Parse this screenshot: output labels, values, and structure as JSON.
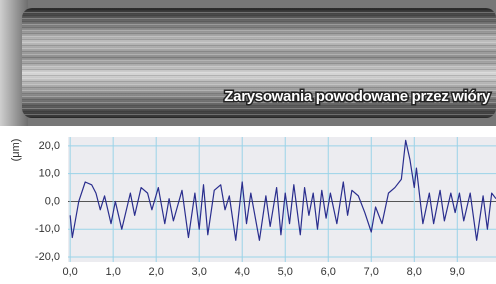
{
  "photo": {
    "caption": "Zarysowania powodowane przez wióry"
  },
  "chart_data": {
    "type": "line",
    "y_label": "(μm)",
    "x": [
      0.0,
      0.05,
      0.2,
      0.35,
      0.5,
      0.6,
      0.7,
      0.8,
      0.95,
      1.05,
      1.2,
      1.4,
      1.5,
      1.65,
      1.8,
      1.9,
      2.05,
      2.2,
      2.3,
      2.4,
      2.6,
      2.75,
      2.9,
      3.0,
      3.1,
      3.2,
      3.35,
      3.5,
      3.6,
      3.7,
      3.85,
      4.0,
      4.1,
      4.2,
      4.4,
      4.55,
      4.65,
      4.8,
      4.9,
      5.0,
      5.1,
      5.2,
      5.35,
      5.45,
      5.55,
      5.65,
      5.75,
      5.85,
      5.95,
      6.05,
      6.2,
      6.35,
      6.45,
      6.55,
      6.7,
      6.85,
      7.0,
      7.1,
      7.25,
      7.4,
      7.55,
      7.7,
      7.8,
      7.9,
      8.0,
      8.05,
      8.2,
      8.35,
      8.45,
      8.6,
      8.7,
      8.85,
      8.95,
      9.05,
      9.15,
      9.3,
      9.45,
      9.6,
      9.7,
      9.8,
      9.9
    ],
    "values": [
      -5,
      -13,
      0,
      7,
      6,
      3,
      -3,
      2,
      -8,
      0,
      -10,
      3,
      -5,
      5,
      3,
      -3,
      5,
      -8,
      1,
      -7,
      4,
      -13,
      3,
      -10,
      6,
      -12,
      4,
      6,
      -3,
      2,
      -14,
      7,
      -8,
      3,
      -14,
      2,
      -9,
      5,
      -12,
      3,
      -8,
      6,
      -12,
      5,
      -5,
      3,
      -10,
      4,
      -6,
      3,
      -8,
      7,
      -5,
      4,
      2,
      -4,
      -11,
      -2,
      -8,
      3,
      5,
      8,
      22,
      15,
      5,
      12,
      -8,
      3,
      -8,
      4,
      -7,
      3,
      -4,
      3,
      -7,
      3,
      -14,
      2,
      -10,
      3,
      1
    ],
    "color": "#2a2e8e",
    "xlim": [
      -0.05,
      9.9
    ],
    "ylim": [
      -21.8,
      23.2
    ],
    "xticks": [
      {
        "value": 0,
        "label": "0,0"
      },
      {
        "value": 1,
        "label": "1,0"
      },
      {
        "value": 2,
        "label": "2,0"
      },
      {
        "value": 3,
        "label": "3,0"
      },
      {
        "value": 4,
        "label": "4,0"
      },
      {
        "value": 5,
        "label": "5,0"
      },
      {
        "value": 6,
        "label": "6,0"
      },
      {
        "value": 7,
        "label": "7,0"
      },
      {
        "value": 8,
        "label": "8,0"
      },
      {
        "value": 9,
        "label": "9,0"
      }
    ],
    "yticks": [
      {
        "value": -20,
        "label": "-20,0"
      },
      {
        "value": -10,
        "label": "-10,0"
      },
      {
        "value": 0,
        "label": "0,0"
      },
      {
        "value": 10,
        "label": "10,0"
      },
      {
        "value": 20,
        "label": "20,0"
      }
    ],
    "grid": true
  }
}
